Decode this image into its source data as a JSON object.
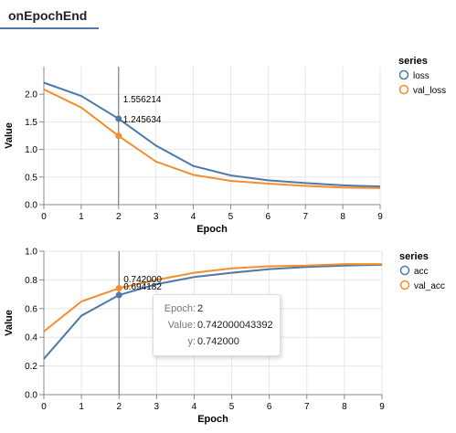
{
  "tabs": [
    {
      "label": "onEpochEnd"
    }
  ],
  "chart_data": [
    {
      "type": "line",
      "x": [
        0,
        1,
        2,
        3,
        4,
        5,
        6,
        7,
        8,
        9
      ],
      "xlabel": "Epoch",
      "ylabel": "Value",
      "xlim": [
        0,
        9
      ],
      "ylim": [
        0,
        2.5
      ],
      "yticks": [
        0,
        0.5,
        1,
        1.5,
        2
      ],
      "ytick_labels": [
        "0.0",
        "0.5",
        "1.0",
        "1.5",
        "2.0"
      ],
      "grid": true,
      "legend_title": "series",
      "legend_position": "right",
      "series": [
        {
          "name": "loss",
          "color": "#4e79a7",
          "values": [
            2.21,
            1.97,
            1.556214,
            1.07,
            0.7,
            0.53,
            0.44,
            0.39,
            0.35,
            0.33
          ]
        },
        {
          "name": "val_loss",
          "color": "#f28e2b",
          "values": [
            2.09,
            1.76,
            1.245634,
            0.78,
            0.54,
            0.43,
            0.38,
            0.34,
            0.31,
            0.3
          ]
        }
      ],
      "hover_x": 2,
      "hover_labels": [
        "1.556214",
        "1.245634"
      ]
    },
    {
      "type": "line",
      "x": [
        0,
        1,
        2,
        3,
        4,
        5,
        6,
        7,
        8,
        9
      ],
      "xlabel": "Epoch",
      "ylabel": "Value",
      "xlim": [
        0,
        9
      ],
      "ylim": [
        0,
        1
      ],
      "yticks": [
        0,
        0.2,
        0.4,
        0.6,
        0.8,
        1
      ],
      "ytick_labels": [
        "0.0",
        "0.2",
        "0.4",
        "0.6",
        "0.8",
        "1.0"
      ],
      "grid": true,
      "legend_title": "series",
      "legend_position": "right",
      "series": [
        {
          "name": "acc",
          "color": "#4e79a7",
          "values": [
            0.25,
            0.55,
            0.694182,
            0.77,
            0.82,
            0.85,
            0.875,
            0.89,
            0.9,
            0.905
          ]
        },
        {
          "name": "val_acc",
          "color": "#f28e2b",
          "values": [
            0.44,
            0.65,
            0.742,
            0.8,
            0.85,
            0.88,
            0.895,
            0.9,
            0.91,
            0.91
          ]
        }
      ],
      "hover_x": 2,
      "hover_labels": [
        "0.742000",
        "0.694182"
      ]
    }
  ],
  "tooltip": {
    "rows": [
      {
        "key": "Epoch:",
        "value": "2"
      },
      {
        "key": "Value:",
        "value": "0.742000043392"
      },
      {
        "key": "y:",
        "value": "0.742000"
      }
    ]
  }
}
